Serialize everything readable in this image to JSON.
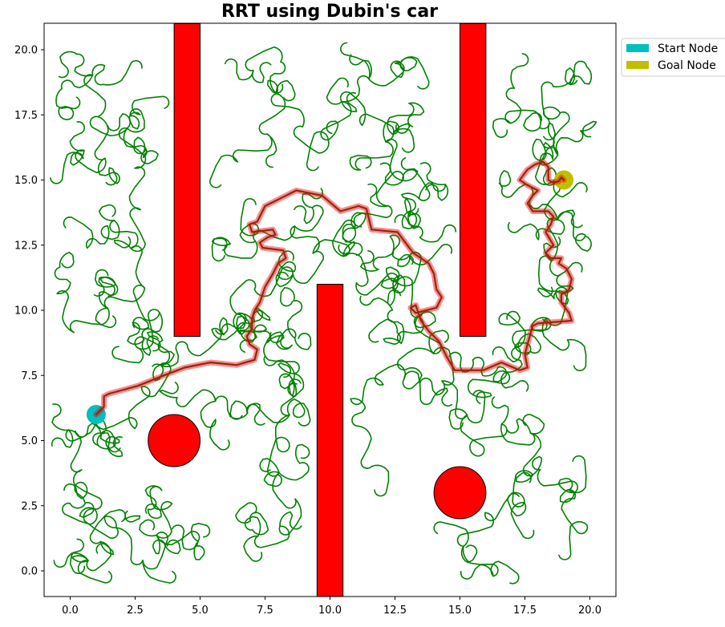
{
  "chart_data": {
    "type": "line",
    "title": "RRT using Dubin's car",
    "xlabel": "",
    "ylabel": "",
    "xlim": [
      -1.0,
      21.0
    ],
    "ylim": [
      -1.0,
      21.0
    ],
    "x_ticks": [
      0.0,
      2.5,
      5.0,
      7.5,
      10.0,
      12.5,
      15.0,
      17.5,
      20.0
    ],
    "x_tick_labels": [
      "0.0",
      "2.5",
      "5.0",
      "7.5",
      "10.0",
      "12.5",
      "15.0",
      "17.5",
      "20.0"
    ],
    "y_ticks": [
      0.0,
      2.5,
      5.0,
      7.5,
      10.0,
      12.5,
      15.0,
      17.5,
      20.0
    ],
    "y_tick_labels": [
      "0.0",
      "2.5",
      "5.0",
      "7.5",
      "10.0",
      "12.5",
      "15.0",
      "17.5",
      "20.0"
    ],
    "grid": false,
    "legend": {
      "position": "outside upper right",
      "entries": [
        {
          "label": "Start Node",
          "color": "#00bfbf"
        },
        {
          "label": "Goal Node",
          "color": "#bfbf00"
        }
      ]
    },
    "start_node": {
      "x": 1.0,
      "y": 6.0,
      "color": "#00bfbf"
    },
    "goal_node": {
      "x": 19.0,
      "y": 15.0,
      "color": "#bfbf00"
    },
    "obstacles": [
      {
        "shape": "rect",
        "x": 4.0,
        "y": 9.0,
        "width": 1.0,
        "height": 12.0,
        "color": "#ff0000"
      },
      {
        "shape": "rect",
        "x": 15.0,
        "y": 9.0,
        "width": 1.0,
        "height": 12.0,
        "color": "#ff0000"
      },
      {
        "shape": "rect",
        "x": 9.5,
        "y": -1.0,
        "width": 1.0,
        "height": 12.0,
        "color": "#ff0000"
      },
      {
        "shape": "circle",
        "cx": 4.0,
        "cy": 5.0,
        "r": 1.0,
        "color": "#ff0000"
      },
      {
        "shape": "circle",
        "cx": 15.0,
        "cy": 3.0,
        "r": 1.0,
        "color": "#ff0000"
      }
    ],
    "tree_color": "#008000",
    "path_color": "#ff0000",
    "path": [
      [
        1.0,
        6.0
      ],
      [
        1.3,
        6.3
      ],
      [
        1.3,
        6.7
      ],
      [
        1.5,
        6.8
      ],
      [
        2.6,
        7.1
      ],
      [
        3.6,
        7.5
      ],
      [
        4.4,
        7.8
      ],
      [
        5.4,
        8.0
      ],
      [
        6.4,
        7.9
      ],
      [
        7.1,
        8.1
      ],
      [
        7.2,
        8.5
      ],
      [
        6.9,
        8.7
      ],
      [
        6.8,
        9.0
      ],
      [
        7.0,
        9.3
      ],
      [
        7.0,
        9.7
      ],
      [
        7.1,
        10.0
      ],
      [
        7.3,
        10.3
      ],
      [
        7.5,
        10.9
      ],
      [
        7.8,
        11.4
      ],
      [
        8.0,
        11.8
      ],
      [
        8.3,
        12.0
      ],
      [
        8.2,
        12.3
      ],
      [
        7.4,
        12.4
      ],
      [
        7.3,
        12.6
      ],
      [
        7.6,
        12.8
      ],
      [
        7.9,
        12.9
      ],
      [
        7.8,
        13.1
      ],
      [
        7.0,
        13.0
      ],
      [
        6.9,
        13.3
      ],
      [
        7.2,
        13.4
      ],
      [
        7.5,
        14.0
      ],
      [
        8.1,
        14.3
      ],
      [
        8.7,
        14.6
      ],
      [
        9.7,
        14.4
      ],
      [
        10.4,
        13.8
      ],
      [
        11.1,
        14.0
      ],
      [
        11.4,
        13.9
      ],
      [
        11.5,
        13.5
      ],
      [
        11.6,
        13.1
      ],
      [
        12.6,
        13.0
      ],
      [
        13.2,
        12.2
      ],
      [
        13.8,
        11.8
      ],
      [
        14.0,
        11.4
      ],
      [
        14.1,
        10.8
      ],
      [
        14.3,
        10.5
      ],
      [
        14.1,
        10.1
      ],
      [
        13.3,
        9.9
      ],
      [
        13.1,
        10.1
      ],
      [
        13.3,
        10.2
      ],
      [
        13.5,
        9.6
      ],
      [
        13.8,
        9.2
      ],
      [
        14.2,
        8.8
      ],
      [
        14.5,
        8.2
      ],
      [
        14.8,
        7.7
      ],
      [
        15.9,
        7.7
      ],
      [
        16.6,
        8.0
      ],
      [
        17.3,
        7.7
      ],
      [
        17.6,
        7.8
      ],
      [
        17.5,
        8.3
      ],
      [
        17.6,
        8.7
      ],
      [
        17.8,
        9.4
      ],
      [
        18.0,
        9.5
      ],
      [
        19.3,
        9.6
      ],
      [
        19.2,
        9.9
      ],
      [
        18.9,
        10.3
      ],
      [
        18.9,
        10.6
      ],
      [
        19.2,
        10.8
      ],
      [
        19.3,
        11.2
      ],
      [
        19.1,
        11.6
      ],
      [
        18.8,
        11.8
      ],
      [
        18.9,
        12.0
      ],
      [
        18.5,
        12.0
      ],
      [
        18.3,
        12.2
      ],
      [
        18.6,
        12.5
      ],
      [
        18.3,
        13.0
      ],
      [
        18.5,
        13.3
      ],
      [
        18.6,
        13.6
      ],
      [
        18.4,
        13.8
      ],
      [
        17.8,
        13.8
      ],
      [
        17.6,
        14.1
      ],
      [
        17.8,
        14.4
      ],
      [
        18.0,
        14.6
      ],
      [
        17.6,
        14.8
      ],
      [
        17.3,
        15.0
      ],
      [
        17.6,
        15.4
      ],
      [
        17.9,
        15.6
      ],
      [
        18.2,
        15.7
      ],
      [
        18.4,
        15.5
      ],
      [
        18.4,
        15.0
      ],
      [
        18.6,
        14.9
      ],
      [
        18.8,
        14.95
      ],
      [
        18.9,
        15.1
      ],
      [
        19.0,
        15.0
      ]
    ]
  }
}
